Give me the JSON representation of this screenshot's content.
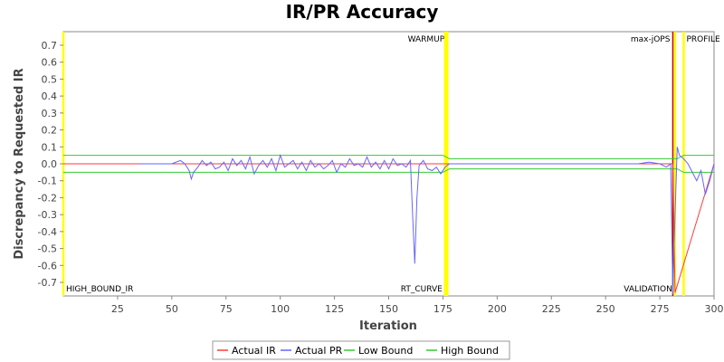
{
  "chart_data": {
    "type": "line",
    "title": "IR/PR Accuracy",
    "xlabel": "Iteration",
    "ylabel": "Discrepancy to Requested IR",
    "xlim": [
      0,
      300
    ],
    "ylim": [
      -0.78,
      0.78
    ],
    "x_ticks": [
      25,
      50,
      75,
      100,
      125,
      150,
      175,
      200,
      225,
      250,
      275,
      300
    ],
    "y_ticks": [
      0.7,
      0.6,
      0.5,
      0.4,
      0.3,
      0.2,
      0.1,
      0.0,
      -0.1,
      -0.2,
      -0.3,
      -0.4,
      -0.5,
      -0.6,
      -0.7
    ],
    "grid": false,
    "legend_position": "bottom",
    "series": [
      {
        "name": "Actual IR",
        "color": "#ff3b3b",
        "x": [
          0,
          35,
          281,
          282,
          300
        ],
        "y": [
          0.0,
          0.0,
          0.0,
          -0.76,
          0.0
        ]
      },
      {
        "name": "Actual PR",
        "color": "#6666ff",
        "x": [
          35,
          40,
          45,
          50,
          52,
          54,
          56,
          58,
          59,
          60,
          62,
          64,
          66,
          68,
          70,
          72,
          74,
          76,
          78,
          80,
          82,
          84,
          86,
          88,
          90,
          92,
          94,
          96,
          98,
          100,
          102,
          104,
          106,
          108,
          110,
          112,
          114,
          116,
          118,
          120,
          122,
          124,
          126,
          128,
          130,
          132,
          134,
          136,
          138,
          140,
          142,
          144,
          146,
          148,
          150,
          152,
          154,
          156,
          158,
          160,
          161,
          162,
          163,
          164,
          166,
          168,
          170,
          172,
          174,
          176,
          178,
          180,
          185,
          190,
          195,
          200,
          205,
          210,
          215,
          220,
          225,
          230,
          235,
          240,
          245,
          250,
          255,
          260,
          265,
          270,
          275,
          278,
          280,
          281,
          282,
          283,
          284,
          286,
          288,
          290,
          292,
          294,
          296,
          298,
          300
        ],
        "y": [
          0.0,
          0.0,
          0.0,
          0.0,
          0.01,
          0.02,
          0.0,
          -0.04,
          -0.09,
          -0.05,
          -0.02,
          0.02,
          -0.01,
          0.01,
          -0.03,
          -0.02,
          0.01,
          -0.04,
          0.03,
          -0.01,
          0.02,
          -0.03,
          0.04,
          -0.06,
          -0.01,
          0.02,
          -0.02,
          0.03,
          -0.04,
          0.05,
          -0.02,
          0.0,
          0.02,
          -0.03,
          0.01,
          -0.04,
          0.02,
          -0.02,
          0.0,
          -0.03,
          -0.01,
          0.02,
          -0.05,
          0.0,
          -0.02,
          0.03,
          -0.01,
          0.0,
          -0.02,
          0.04,
          -0.02,
          0.01,
          -0.03,
          0.02,
          -0.03,
          0.03,
          -0.01,
          0.0,
          -0.02,
          0.02,
          -0.3,
          -0.59,
          -0.2,
          -0.01,
          0.02,
          -0.03,
          -0.04,
          -0.02,
          -0.06,
          -0.02,
          0.0,
          0.0,
          0.0,
          0.0,
          0.0,
          0.0,
          0.0,
          0.0,
          0.0,
          0.0,
          0.0,
          0.0,
          0.0,
          0.0,
          0.0,
          0.0,
          0.0,
          0.0,
          0.0,
          0.01,
          0.0,
          -0.02,
          0.0,
          -0.77,
          -0.3,
          0.1,
          0.05,
          0.03,
          0.0,
          -0.05,
          -0.1,
          -0.04,
          -0.18,
          -0.1,
          0.0
        ]
      },
      {
        "name": "Low Bound",
        "color": "#33cc33",
        "x": [
          0,
          175,
          178,
          283,
          286,
          300
        ],
        "y": [
          -0.05,
          -0.05,
          -0.03,
          -0.03,
          -0.05,
          -0.05
        ]
      },
      {
        "name": "High Bound",
        "color": "#33cc33",
        "x": [
          0,
          175,
          178,
          283,
          286,
          300
        ],
        "y": [
          0.05,
          0.05,
          0.03,
          0.03,
          0.05,
          0.05
        ]
      }
    ],
    "markers": [
      {
        "label": "HIGH_BOUND_IR",
        "x": 0,
        "color": "#ffff00",
        "label_pos": "bottom-right"
      },
      {
        "label": "WARMUP",
        "x": 177,
        "color": "#ffff00",
        "label_pos": "top-left"
      },
      {
        "label": "RT_CURVE",
        "x": 176,
        "color": "#ffff00",
        "label_pos": "bottom-left"
      },
      {
        "label": "max-jOPS",
        "x": 281,
        "color": "#cc0000",
        "label_pos": "top-left"
      },
      {
        "label": "VALIDATION",
        "x": 282,
        "color": "#ffff00",
        "label_pos": "bottom-left"
      },
      {
        "label": "PROFILE",
        "x": 286,
        "color": "#ffff00",
        "label_pos": "top-right"
      }
    ]
  }
}
